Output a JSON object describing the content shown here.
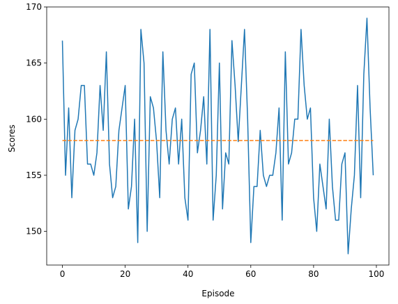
{
  "chart_data": {
    "type": "line",
    "title": "",
    "xlabel": "Episode",
    "ylabel": "Scores",
    "xlim": [
      -5,
      104
    ],
    "ylim": [
      147,
      170
    ],
    "xticks": [
      0,
      20,
      40,
      60,
      80,
      100
    ],
    "yticks": [
      150,
      155,
      160,
      165,
      170
    ],
    "grid": false,
    "series": [
      {
        "color": "#1f77b4",
        "style": "solid",
        "x_start": 0,
        "values": [
          167,
          155,
          161,
          153,
          159,
          160,
          163,
          163,
          156,
          156,
          155,
          157,
          163,
          159,
          166,
          156,
          153,
          154,
          159,
          161,
          163,
          152,
          154,
          160,
          149,
          168,
          165,
          150,
          162,
          161,
          158,
          153,
          166,
          159,
          156,
          160,
          161,
          156,
          160,
          153,
          151,
          164,
          165,
          157,
          159,
          162,
          156,
          168,
          151,
          155,
          165,
          152,
          157,
          156,
          167,
          163,
          158,
          163,
          168,
          160,
          149,
          154,
          154,
          159,
          155,
          154,
          155,
          155,
          157,
          161,
          151,
          166,
          156,
          157,
          160,
          160,
          168,
          163,
          160,
          161,
          153,
          150,
          156,
          154,
          152,
          160,
          154,
          151,
          151,
          156,
          157,
          148,
          152,
          155,
          163,
          153,
          164,
          169,
          161,
          155
        ]
      },
      {
        "color": "#ff7f0e",
        "style": "dashed",
        "x": [
          0,
          99
        ],
        "values": [
          158.1,
          158.1
        ]
      }
    ]
  }
}
